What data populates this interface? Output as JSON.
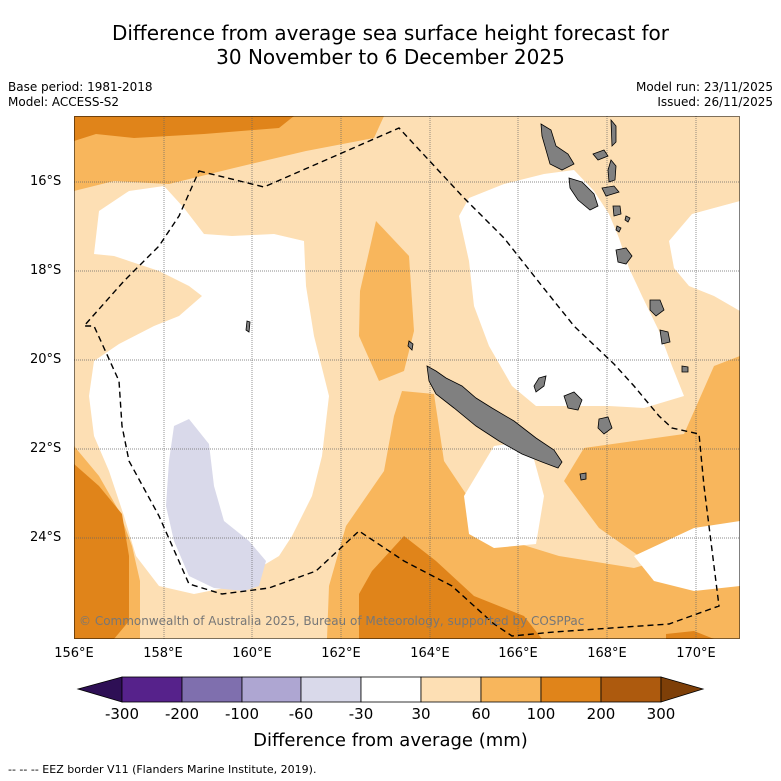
{
  "title": {
    "line1": "Difference from average sea surface height forecast for",
    "line2": "30 November to 6 December 2025"
  },
  "meta": {
    "base_period": "Base period: 1981-2018",
    "model": "Model: ACCESS-S2",
    "model_run": "Model run: 23/11/2025",
    "issued": "Issued: 26/11/2025"
  },
  "axes": {
    "latitudes": [
      "16°S",
      "18°S",
      "20°S",
      "22°S",
      "24°S"
    ],
    "longitudes": [
      "156°E",
      "158°E",
      "160°E",
      "162°E",
      "164°E",
      "166°E",
      "168°E",
      "170°E"
    ]
  },
  "colorbar": {
    "ticks": [
      "-300",
      "-200",
      "-100",
      "-60",
      "-30",
      "30",
      "60",
      "100",
      "200",
      "300"
    ],
    "colors": [
      "#2e0f55",
      "#56228b",
      "#7f6fae",
      "#aea6d2",
      "#d9d9ea",
      "#ffffff",
      "#fddfb4",
      "#f8b65c",
      "#e0841a",
      "#ad5a0e",
      "#7e3f08"
    ],
    "label": "Difference from average (mm)"
  },
  "footnote": "--  --  -- EEZ border V11 (Flanders Marine Institute, 2019).",
  "copyright": "© Commonwealth of Australia 2025, Bureau of Meteorology, supported by COSPPac",
  "map_colors": {
    "c30_60": "#fddfb4",
    "c60_100": "#f8b65c",
    "c100_200": "#e0841a",
    "cneg60_30": "#d9d9ea",
    "land": "#808080"
  }
}
